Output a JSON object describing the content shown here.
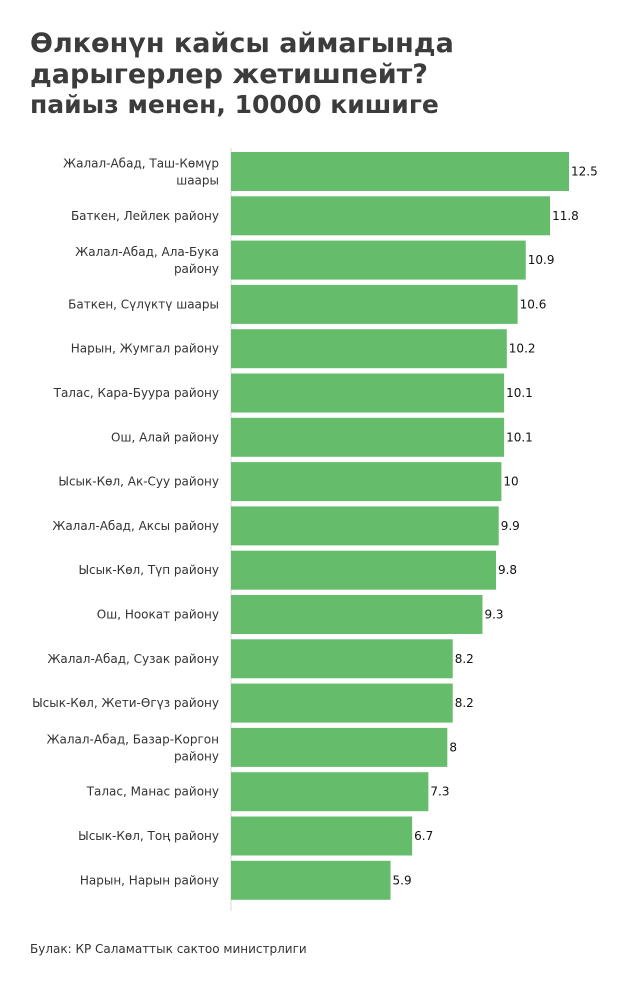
{
  "title": "Өлкөнүн кайсы аймагында дарыгерлер жетишпейт?",
  "subtitle": "пайыз менен, 10000 кишиге",
  "source": "Булак: КР Саламаттык сактоо министрлиги",
  "bar_color": "#65bd6b",
  "chart_data": {
    "type": "bar",
    "orientation": "horizontal",
    "categories": [
      "Жалал-Абад, Таш-Көмүр шаары",
      "Баткен, Лейлек району",
      "Жалал-Абад, Ала-Бука району",
      "Баткен, Сүлүктү шаары",
      "Нарын, Жумгал району",
      "Талас, Кара-Буура району",
      "Ош, Алай району",
      "Ысык-Көл, Ак-Суу району",
      "Жалал-Абад, Аксы району",
      "Ысык-Көл, Түп району",
      "Ош, Ноокат району",
      "Жалал-Абад, Сузак району",
      "Ысык-Көл, Жети-Өгүз району",
      "Жалал-Абад, Базар-Коргон району",
      "Талас, Манас району",
      "Ысык-Көл, Тоң району",
      "Нарын, Нарын району"
    ],
    "values": [
      12.5,
      11.8,
      10.9,
      10.6,
      10.2,
      10.1,
      10.1,
      10,
      9.9,
      9.8,
      9.3,
      8.2,
      8.2,
      8,
      7.3,
      6.7,
      5.9
    ],
    "value_labels": [
      "12.5",
      "11.8",
      "10.9",
      "10.6",
      "10.2",
      "10.1",
      "10.1",
      "10",
      "9.9",
      "9.8",
      "9.3",
      "8.2",
      "8.2",
      "8",
      "7.3",
      "6.7",
      "5.9"
    ],
    "xlim": [
      0,
      12.5
    ],
    "grid": false,
    "legend": "none"
  }
}
